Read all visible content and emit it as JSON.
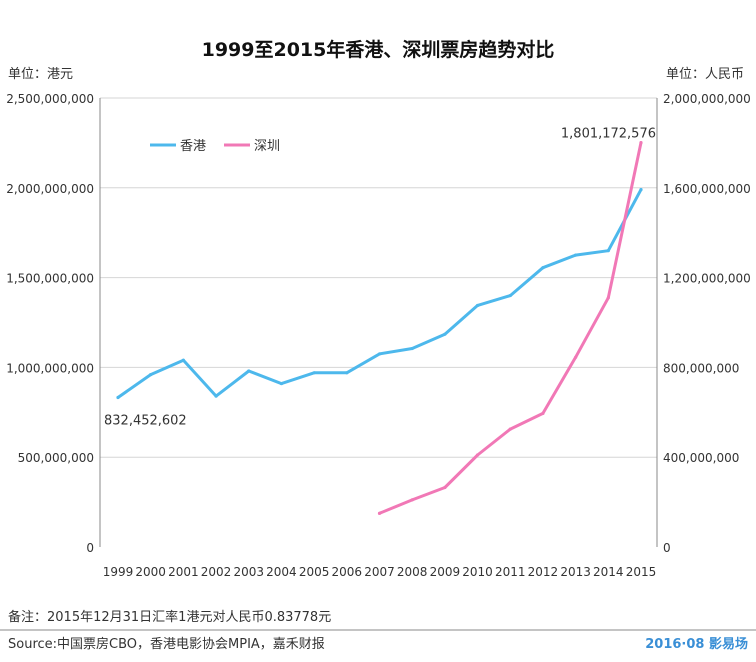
{
  "chart_data": {
    "type": "line",
    "title": "1999至2015年香港、深圳票房趋势对比",
    "ylabel_left": "单位：港元",
    "ylabel_right": "单位：人民币",
    "ylim_left": [
      0,
      2500000000
    ],
    "ylim_right": [
      0,
      2000000000
    ],
    "yticks_left": [
      "0",
      "500,000,000",
      "1,000,000,000",
      "1,500,000,000",
      "2,000,000,000",
      "2,500,000,000"
    ],
    "yticks_right": [
      "0",
      "400,000,000",
      "800,000,000",
      "1,200,000,000",
      "1,600,000,000",
      "2,000,000,000"
    ],
    "x": [
      1999,
      2000,
      2001,
      2002,
      2003,
      2004,
      2005,
      2006,
      2007,
      2008,
      2009,
      2010,
      2011,
      2012,
      2013,
      2014,
      2015
    ],
    "grid": "horizontal",
    "legend_position": "top-left",
    "series": [
      {
        "name": "香港",
        "axis": "left",
        "color": "#4db8ec",
        "values": [
          832452602,
          960000000,
          1040000000,
          840000000,
          980000000,
          910000000,
          970000000,
          970000000,
          1075000000,
          1105000000,
          1185000000,
          1345000000,
          1400000000,
          1555000000,
          1625000000,
          1650000000,
          1990000000
        ]
      },
      {
        "name": "深圳",
        "axis": "right",
        "color": "#f178b6",
        "values": [
          null,
          null,
          null,
          null,
          null,
          null,
          null,
          null,
          150000000,
          210000000,
          265000000,
          410000000,
          525000000,
          595000000,
          845000000,
          1110000000,
          1801172576
        ]
      }
    ],
    "annotations": [
      {
        "series": 0,
        "index": 0,
        "text": "832,452,602"
      },
      {
        "series": 1,
        "index": 16,
        "text": "1,801,172,576"
      }
    ]
  },
  "footer": {
    "note": "备注：2015年12月31日汇率1港元对人民币0.83778元",
    "source": "Source:中国票房CBO，香港电影协会MPIA，嘉禾财报",
    "brand": "2016·08 影易场",
    "brand_color": "#3a8fd6"
  }
}
